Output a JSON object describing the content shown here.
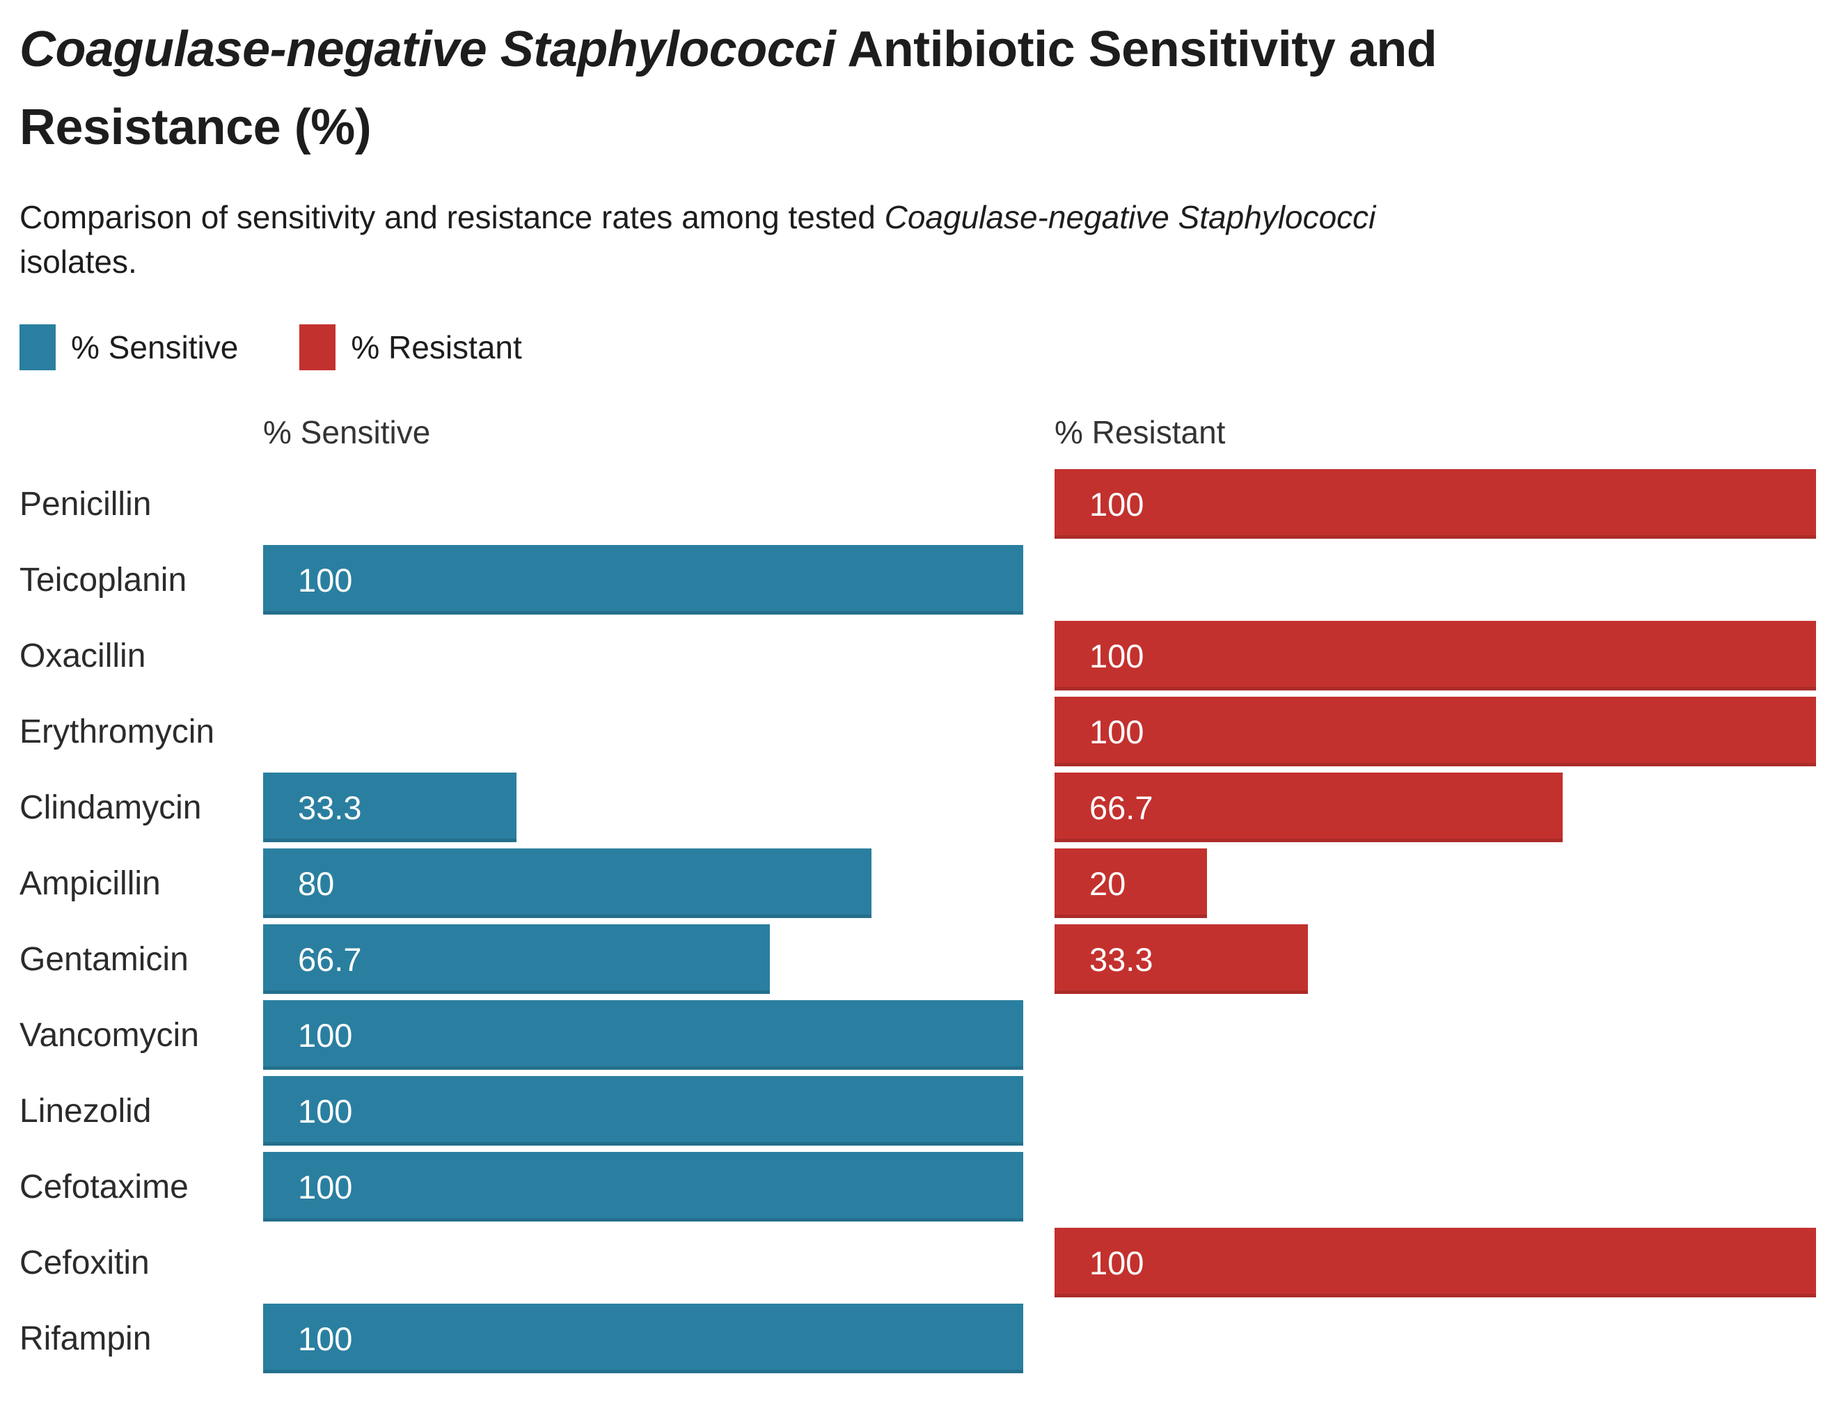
{
  "title": {
    "italic": "Coagulase-negative Staphylococci",
    "rest": " Antibiotic Sensitivity and\nResistance (%)"
  },
  "subtitle": {
    "prefix": "Comparison of sensitivity and resistance rates among tested ",
    "italic": "Coagulase-negative Staphylococci",
    "suffix": "\nisolates."
  },
  "legend": {
    "sensitive_label": "% Sensitive",
    "resistant_label": "% Resistant"
  },
  "columns": {
    "sensitive": "% Sensitive",
    "resistant": "% Resistant"
  },
  "colors": {
    "sensitive": "#2a7fa0",
    "resistant": "#c3312e",
    "text": "#1d1d1d"
  },
  "chart_data": {
    "type": "bar",
    "orientation": "horizontal",
    "title": "Coagulase-negative Staphylococci Antibiotic Sensitivity and Resistance (%)",
    "subtitle": "Comparison of sensitivity and resistance rates among tested Coagulase-negative Staphylococci isolates.",
    "xlim": [
      0,
      100
    ],
    "grid": false,
    "legend_position": "top-left",
    "value_labels": "inside-start",
    "categories": [
      "Penicillin",
      "Teicoplanin",
      "Oxacillin",
      "Erythromycin",
      "Clindamycin",
      "Ampicillin",
      "Gentamicin",
      "Vancomycin",
      "Linezolid",
      "Cefotaxime",
      "Cefoxitin",
      "Rifampin"
    ],
    "series": [
      {
        "name": "% Sensitive",
        "color": "#2a7fa0",
        "values": [
          null,
          100,
          null,
          null,
          33.3,
          80,
          66.7,
          100,
          100,
          100,
          null,
          100
        ],
        "labels": [
          "",
          "100",
          "",
          "",
          "33.3",
          "80",
          "66.7",
          "100",
          "100",
          "100",
          "",
          "100"
        ]
      },
      {
        "name": "% Resistant",
        "color": "#c3312e",
        "values": [
          100,
          null,
          100,
          100,
          66.7,
          20,
          33.3,
          null,
          null,
          null,
          100,
          null
        ],
        "labels": [
          "100",
          "",
          "100",
          "100",
          "66.7",
          "20",
          "33.3",
          "",
          "",
          "",
          "100",
          ""
        ]
      }
    ]
  }
}
